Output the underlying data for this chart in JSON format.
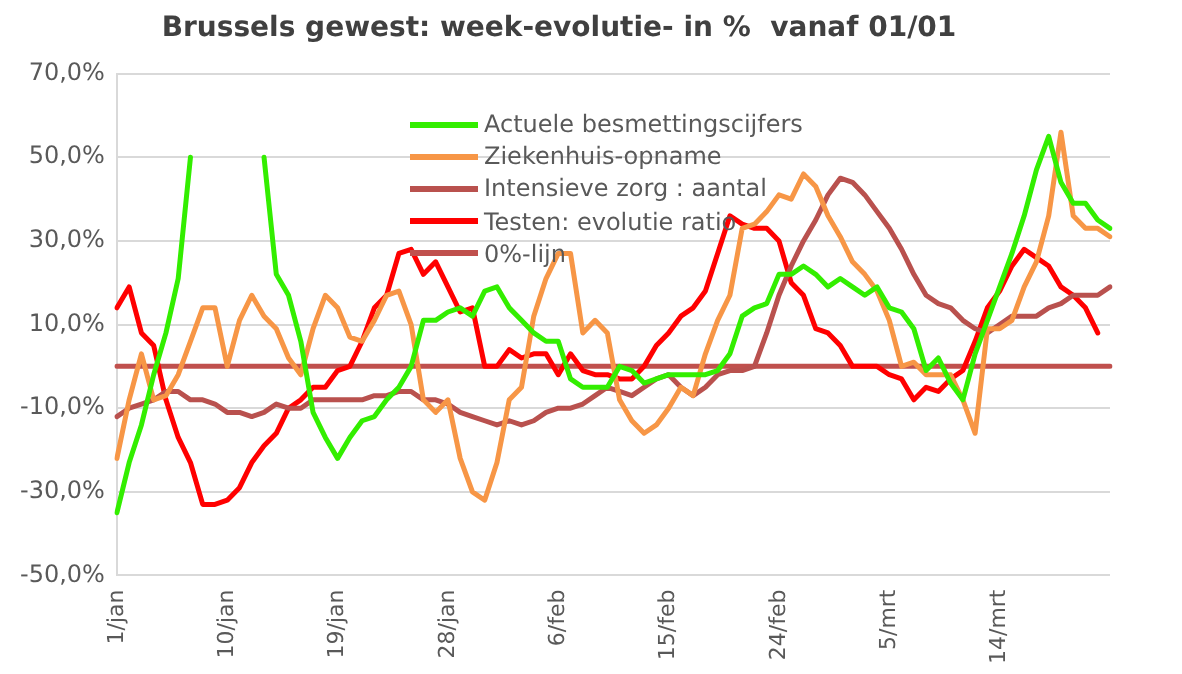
{
  "chart_data": {
    "type": "line",
    "title": "Brussels gewest: week-evolutie- in %  vanaf 01/01",
    "categories": [
      "1/jan",
      null,
      null,
      null,
      null,
      null,
      null,
      null,
      null,
      "10/jan",
      null,
      null,
      null,
      null,
      null,
      null,
      null,
      null,
      "19/jan",
      null,
      null,
      null,
      null,
      null,
      null,
      null,
      null,
      "28/jan",
      null,
      null,
      null,
      null,
      null,
      null,
      null,
      null,
      "6/feb",
      null,
      null,
      null,
      null,
      null,
      null,
      null,
      null,
      "15/feb",
      null,
      null,
      null,
      null,
      null,
      null,
      null,
      null,
      "24/feb",
      null,
      null,
      null,
      null,
      null,
      null,
      null,
      null,
      "5/mrt",
      null,
      null,
      null,
      null,
      null,
      null,
      null,
      null,
      "14/mrt",
      null,
      null,
      null,
      null,
      null,
      null,
      null,
      null,
      null
    ],
    "series": [
      {
        "name": "Actuele besmettingscijfers",
        "color": "#33ee00",
        "values": [
          -35,
          -23,
          -14,
          -2,
          8,
          21,
          50,
          null,
          null,
          null,
          null,
          null,
          50,
          22,
          17,
          6,
          -11,
          -17,
          -22,
          -17,
          -13,
          -12,
          -8,
          -5,
          0,
          11,
          11,
          13,
          14,
          12,
          18,
          19,
          14,
          11,
          8,
          6,
          6,
          -3,
          -5,
          -5,
          -5,
          0,
          -1,
          -4,
          -3,
          -2,
          -2,
          -2,
          -2,
          -1,
          3,
          12,
          14,
          15,
          22,
          22,
          24,
          22,
          19,
          21,
          19,
          17,
          19,
          14,
          13,
          9,
          -1,
          2,
          -4,
          -8,
          3,
          11,
          19,
          27,
          36,
          47,
          55,
          44,
          39,
          39,
          35,
          33
        ]
      },
      {
        "name": "Ziekenhuis-opname",
        "color": "#f79646",
        "values": [
          -22,
          -8,
          3,
          -8,
          -7,
          -2,
          6,
          14,
          14,
          0,
          11,
          17,
          12,
          9,
          2,
          -2,
          9,
          17,
          14,
          7,
          6,
          11,
          17,
          18,
          10,
          -8,
          -11,
          -8,
          -22,
          -30,
          -32,
          -23,
          -8,
          -5,
          12,
          21,
          27,
          27,
          8,
          11,
          8,
          -8,
          -13,
          -16,
          -14,
          -10,
          -5,
          -7,
          3,
          11,
          17,
          33,
          34,
          37,
          41,
          40,
          46,
          43,
          36,
          31,
          25,
          22,
          18,
          11,
          0,
          1,
          -2,
          -2,
          -2,
          -8,
          -16,
          9,
          9,
          11,
          19,
          25,
          36,
          56,
          36,
          33,
          33,
          31
        ]
      },
      {
        "name": "Intensieve zorg : aantal",
        "color": "#b9514e",
        "values": [
          -12,
          -10,
          -9,
          -8,
          -6,
          -6,
          -8,
          -8,
          -9,
          -11,
          -11,
          -12,
          -11,
          -9,
          -10,
          -10,
          -8,
          -8,
          -8,
          -8,
          -8,
          -7,
          -7,
          -6,
          -6,
          -8,
          -8,
          -9,
          -11,
          -12,
          -13,
          -14,
          -13,
          -14,
          -13,
          -11,
          -10,
          -10,
          -9,
          -7,
          -5,
          -6,
          -7,
          -5,
          -3,
          -2,
          -5,
          -7,
          -5,
          -2,
          -1,
          -1,
          0,
          8,
          17,
          24,
          30,
          35,
          41,
          45,
          44,
          41,
          37,
          33,
          28,
          22,
          17,
          15,
          14,
          11,
          9,
          8,
          10,
          12,
          12,
          12,
          14,
          15,
          17,
          17,
          17,
          19
        ]
      },
      {
        "name": "Testen: evolutie ratio",
        "color": "#ff0000",
        "values": [
          14,
          19,
          8,
          5,
          -8,
          -17,
          -23,
          -33,
          -33,
          -32,
          -29,
          -23,
          -19,
          -16,
          -10,
          -8,
          -5,
          -5,
          -1,
          0,
          6,
          14,
          17,
          27,
          28,
          22,
          25,
          19,
          13,
          14,
          0,
          0,
          4,
          2,
          3,
          3,
          -2,
          3,
          -1,
          -2,
          -2,
          -3,
          -3,
          0,
          5,
          8,
          12,
          14,
          18,
          27,
          36,
          34,
          33,
          33,
          30,
          20,
          17,
          9,
          8,
          5,
          0,
          0,
          0,
          -2,
          -3,
          -8,
          -5,
          -6,
          -3,
          -1,
          6,
          14,
          18,
          24,
          28,
          26,
          24,
          19,
          17,
          14,
          8,
          null
        ]
      },
      {
        "name": "0%-lijn",
        "color": "#c0504d",
        "values": [
          0,
          0,
          0,
          0,
          0,
          0,
          0,
          0,
          0,
          0,
          0,
          0,
          0,
          0,
          0,
          0,
          0,
          0,
          0,
          0,
          0,
          0,
          0,
          0,
          0,
          0,
          0,
          0,
          0,
          0,
          0,
          0,
          0,
          0,
          0,
          0,
          0,
          0,
          0,
          0,
          0,
          0,
          0,
          0,
          0,
          0,
          0,
          0,
          0,
          0,
          0,
          0,
          0,
          0,
          0,
          0,
          0,
          0,
          0,
          0,
          0,
          0,
          0,
          0,
          0,
          0,
          0,
          0,
          0,
          0,
          0,
          0,
          0,
          0,
          0,
          0,
          0,
          0,
          0,
          0,
          0,
          0
        ]
      }
    ],
    "ylim": [
      -50,
      70
    ],
    "yticks": [
      {
        "value": 70,
        "label": "70,0%"
      },
      {
        "value": 50,
        "label": "50,0%"
      },
      {
        "value": 30,
        "label": "30,0%"
      },
      {
        "value": 10,
        "label": "10,0%"
      },
      {
        "value": -10,
        "label": "-10,0%"
      },
      {
        "value": -30,
        "label": "-30,0%"
      },
      {
        "value": -50,
        "label": "-50,0%"
      }
    ],
    "grid": "y",
    "legend": "top",
    "marker": "none",
    "line_style": "solid"
  }
}
